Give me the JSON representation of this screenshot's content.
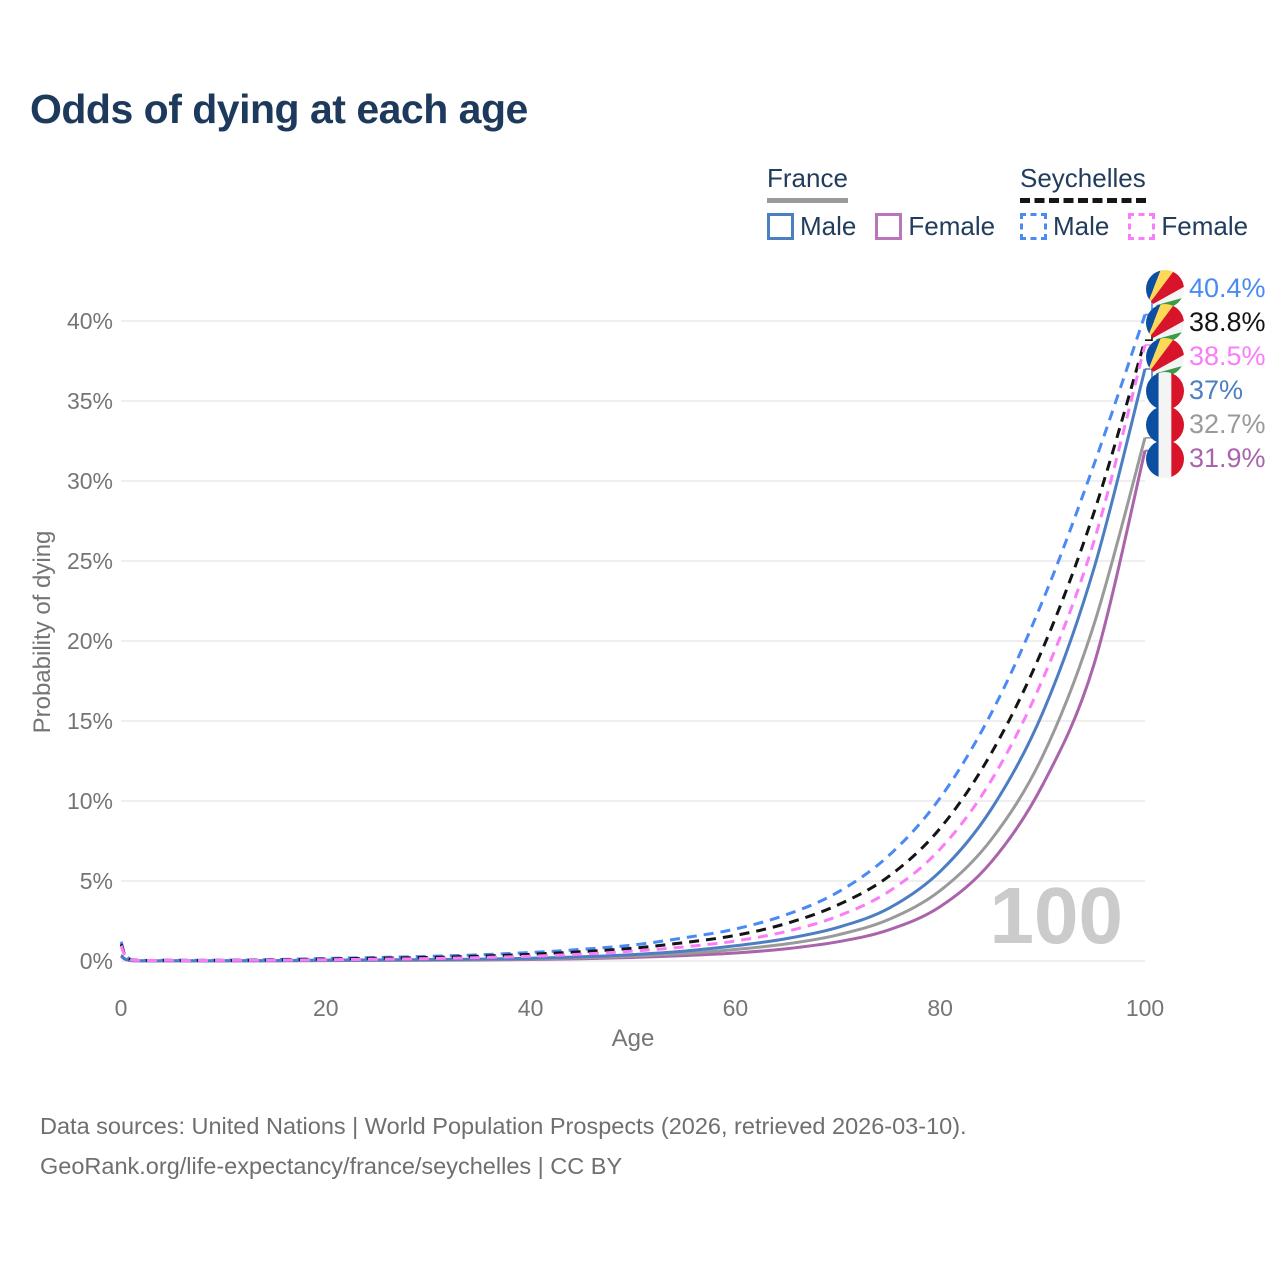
{
  "title": "Odds of dying at each age",
  "legend": {
    "groups": [
      {
        "label": "France",
        "underline_style": "solid",
        "underline_color": "#9a9a9a",
        "items": [
          {
            "label": "Male",
            "color": "#4d7ec2",
            "dashed": false
          },
          {
            "label": "Female",
            "color": "#b877b9",
            "dashed": false
          }
        ]
      },
      {
        "label": "Seychelles",
        "underline_style": "dashed",
        "underline_color": "#161616",
        "items": [
          {
            "label": "Male",
            "color": "#4a8af4",
            "dashed": true
          },
          {
            "label": "Female",
            "color": "#fb7cf8",
            "dashed": true
          }
        ]
      }
    ]
  },
  "footer": {
    "line1": "Data sources: United Nations | World Population Prospects (2026, retrieved 2026-03-10).",
    "line2": "GeoRank.org/life-expectancy/france/seychelles | CC BY"
  },
  "chart_data": {
    "type": "line",
    "title": "Odds of dying at each age",
    "xlabel": "Age",
    "ylabel": "Probability of dying",
    "xlim": [
      0,
      100
    ],
    "ylim": [
      0,
      42
    ],
    "x_ticks": [
      0,
      20,
      40,
      60,
      80,
      100
    ],
    "y_ticks": [
      0,
      5,
      10,
      15,
      20,
      25,
      30,
      35,
      40
    ],
    "y_tick_suffix": "%",
    "grid": "horizontal",
    "legend_position": "top-right",
    "watermark": "100",
    "ages": [
      0,
      1,
      5,
      10,
      15,
      20,
      25,
      30,
      35,
      40,
      45,
      50,
      55,
      60,
      65,
      70,
      75,
      80,
      85,
      90,
      95,
      100
    ],
    "series": [
      {
        "id": "france-female",
        "country": "France",
        "sex": "Female",
        "color": "#a964ab",
        "dashed": false,
        "flag": "france",
        "end_label": "31.9%",
        "values": [
          0.3,
          0.022,
          0.009,
          0.009,
          0.015,
          0.025,
          0.035,
          0.045,
          0.065,
          0.095,
          0.145,
          0.22,
          0.34,
          0.5,
          0.77,
          1.2,
          1.95,
          3.4,
          6.2,
          11.0,
          18.5,
          31.9
        ]
      },
      {
        "id": "france-all",
        "country": "France",
        "sex": "All",
        "color": "#9a9a9a",
        "dashed": false,
        "flag": "france",
        "end_label": "32.7%",
        "values": [
          0.32,
          0.025,
          0.01,
          0.01,
          0.02,
          0.04,
          0.05,
          0.065,
          0.09,
          0.13,
          0.2,
          0.3,
          0.47,
          0.72,
          1.07,
          1.63,
          2.6,
          4.4,
          7.6,
          12.8,
          21.0,
          32.7
        ]
      },
      {
        "id": "france-male",
        "country": "France",
        "sex": "Male",
        "color": "#4d7ec2",
        "dashed": false,
        "flag": "france",
        "end_label": "37%",
        "values": [
          0.35,
          0.03,
          0.012,
          0.012,
          0.025,
          0.055,
          0.07,
          0.09,
          0.12,
          0.17,
          0.26,
          0.4,
          0.62,
          0.95,
          1.4,
          2.1,
          3.3,
          5.6,
          9.5,
          15.5,
          24.5,
          37.0
        ]
      },
      {
        "id": "seychelles-male",
        "country": "Seychelles",
        "sex": "Male",
        "color": "#4a8af4",
        "dashed": true,
        "flag": "seychelles",
        "end_label": "40.4%",
        "values": [
          1.2,
          0.09,
          0.05,
          0.05,
          0.09,
          0.16,
          0.22,
          0.29,
          0.39,
          0.53,
          0.73,
          1.0,
          1.45,
          2.0,
          2.9,
          4.3,
          6.6,
          10.2,
          15.5,
          22.5,
          31.0,
          40.4
        ]
      },
      {
        "id": "seychelles-all",
        "country": "Seychelles",
        "sex": "All",
        "color": "#141414",
        "dashed": true,
        "flag": "seychelles",
        "end_label": "38.8%",
        "values": [
          1.05,
          0.08,
          0.04,
          0.04,
          0.07,
          0.12,
          0.17,
          0.22,
          0.3,
          0.42,
          0.58,
          0.8,
          1.15,
          1.6,
          2.35,
          3.5,
          5.3,
          8.3,
          13.0,
          19.5,
          28.0,
          38.8
        ]
      },
      {
        "id": "seychelles-female",
        "country": "Seychelles",
        "sex": "Female",
        "color": "#fb7cf8",
        "dashed": true,
        "flag": "seychelles",
        "end_label": "38.5%",
        "values": [
          0.95,
          0.07,
          0.035,
          0.035,
          0.05,
          0.08,
          0.11,
          0.15,
          0.21,
          0.3,
          0.43,
          0.62,
          0.88,
          1.25,
          1.85,
          2.8,
          4.35,
          7.0,
          11.3,
          17.6,
          26.2,
          38.5
        ]
      }
    ]
  }
}
